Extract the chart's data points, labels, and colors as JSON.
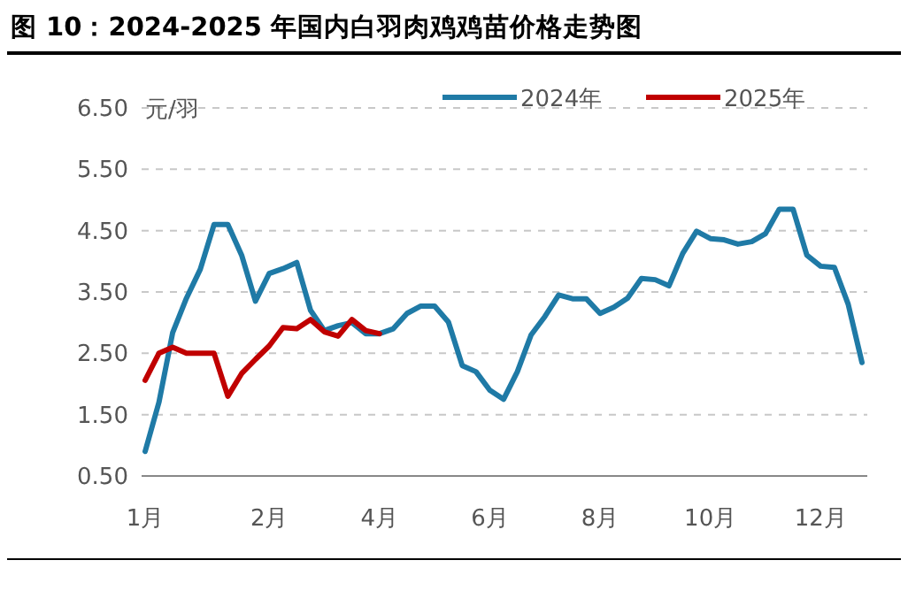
{
  "chart_data": {
    "type": "line",
    "title": "图 10：2024-2025 年国内白羽肉鸡鸡苗价格走势图",
    "ylabel": "元/羽",
    "categories": [
      "1月",
      null,
      null,
      null,
      null,
      null,
      null,
      null,
      null,
      "2月",
      null,
      null,
      null,
      null,
      null,
      null,
      null,
      "4月",
      null,
      null,
      null,
      null,
      null,
      null,
      null,
      "6月",
      null,
      null,
      null,
      null,
      null,
      null,
      null,
      "8月",
      null,
      null,
      null,
      null,
      null,
      null,
      null,
      "10月",
      null,
      null,
      null,
      null,
      null,
      null,
      null,
      "12月",
      null,
      null,
      null
    ],
    "ylim": [
      0.5,
      6.5
    ],
    "yticks": [
      {
        "value": 0.5,
        "label": "0.50"
      },
      {
        "value": 1.5,
        "label": "1.50"
      },
      {
        "value": 2.5,
        "label": "2.50"
      },
      {
        "value": 3.5,
        "label": "3.50"
      },
      {
        "value": 4.5,
        "label": "4.50"
      },
      {
        "value": 5.5,
        "label": "5.50"
      },
      {
        "value": 6.5,
        "label": "6.50"
      }
    ],
    "grid": "y",
    "legend": "top right",
    "line_style": "solid",
    "marker": "none",
    "series": [
      {
        "name": "2024年",
        "color": "#1f7aa6",
        "values": [
          0.9,
          1.7,
          2.84,
          3.4,
          3.87,
          4.6,
          4.6,
          4.1,
          3.35,
          3.8,
          3.88,
          3.98,
          3.2,
          2.87,
          2.95,
          3.0,
          2.82,
          2.82,
          2.9,
          3.15,
          3.27,
          3.27,
          3.01,
          2.3,
          2.2,
          1.9,
          1.75,
          2.2,
          2.8,
          3.1,
          3.45,
          3.39,
          3.39,
          3.15,
          3.25,
          3.4,
          3.72,
          3.7,
          3.6,
          4.13,
          4.49,
          4.37,
          4.35,
          4.28,
          4.32,
          4.45,
          4.85,
          4.85,
          4.1,
          3.92,
          3.9,
          3.3,
          2.35
        ]
      },
      {
        "name": "2025年",
        "color": "#c00000",
        "values": [
          2.06,
          2.5,
          2.6,
          2.5,
          2.5,
          2.5,
          1.8,
          2.17,
          2.4,
          2.62,
          2.92,
          2.9,
          3.05,
          2.85,
          2.78,
          3.05,
          2.87,
          2.82,
          null,
          null,
          null,
          null,
          null,
          null,
          null,
          null,
          null,
          null,
          null,
          null,
          null,
          null,
          null,
          null,
          null,
          null,
          null,
          null,
          null,
          null,
          null,
          null,
          null,
          null,
          null,
          null,
          null,
          null,
          null,
          null,
          null,
          null,
          null
        ]
      }
    ]
  }
}
